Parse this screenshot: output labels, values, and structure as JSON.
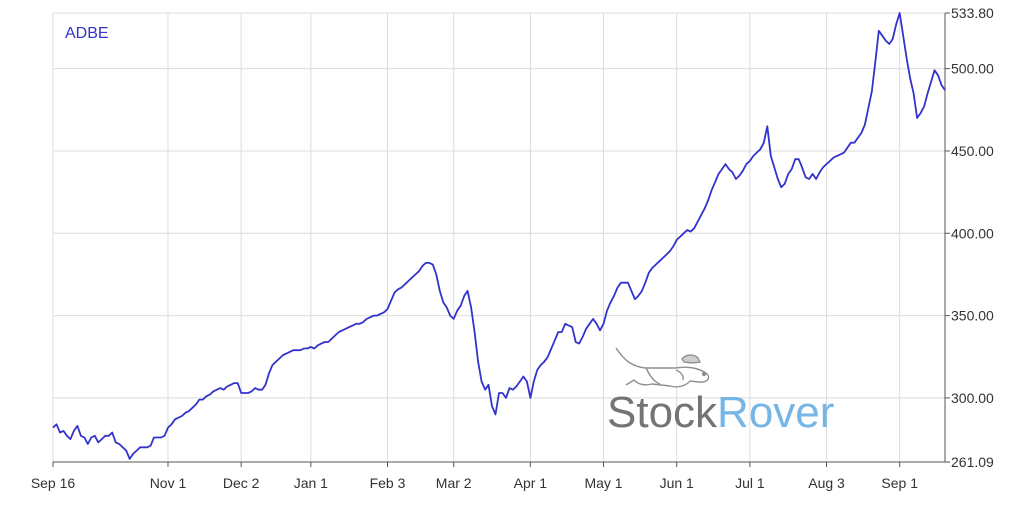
{
  "ticker": "ADBE",
  "watermark": {
    "part1": "Stock",
    "part2": "Rover",
    "color1": "#6d6d6d",
    "color2": "#6fb3e6"
  },
  "colors": {
    "line": "#3333cc",
    "grid": "#dcdcdc",
    "axis": "#555555"
  },
  "chart_data": {
    "type": "line",
    "title": "",
    "xlabel": "",
    "ylabel": "",
    "grid": true,
    "y_axis_side": "right",
    "ylim": [
      261.09,
      533.8
    ],
    "y_ticks": [
      {
        "value": 261.09,
        "label": "261.09"
      },
      {
        "value": 300,
        "label": "300.00"
      },
      {
        "value": 350,
        "label": "350.00"
      },
      {
        "value": 400,
        "label": "400.00"
      },
      {
        "value": 450,
        "label": "450.00"
      },
      {
        "value": 500,
        "label": "500.00"
      },
      {
        "value": 533.8,
        "label": "533.80"
      }
    ],
    "x_ticks": [
      {
        "index": 0,
        "label": "Sep 16"
      },
      {
        "index": 33,
        "label": "Nov 1"
      },
      {
        "index": 54,
        "label": "Dec 2"
      },
      {
        "index": 74,
        "label": "Jan 1"
      },
      {
        "index": 96,
        "label": "Feb 3"
      },
      {
        "index": 115,
        "label": "Mar 2"
      },
      {
        "index": 137,
        "label": "Apr 1"
      },
      {
        "index": 158,
        "label": "May 1"
      },
      {
        "index": 179,
        "label": "Jun 1"
      },
      {
        "index": 200,
        "label": "Jul 1"
      },
      {
        "index": 222,
        "label": "Aug 3"
      },
      {
        "index": 243,
        "label": "Sep 1"
      }
    ],
    "series": [
      {
        "values": [
          282,
          284,
          279,
          280,
          277,
          275,
          280,
          283,
          277,
          276,
          272,
          276,
          277,
          273,
          275,
          277,
          277,
          279,
          273,
          272,
          270,
          268,
          263,
          266,
          268,
          270,
          270,
          270,
          271,
          276,
          276,
          276,
          277,
          282,
          284,
          287,
          288,
          289,
          291,
          292,
          294,
          296,
          299,
          299,
          301,
          302,
          304,
          305,
          306,
          305,
          307,
          308,
          309,
          309,
          303,
          303,
          303,
          304,
          306,
          305,
          305,
          308,
          315,
          320,
          322,
          324,
          326,
          327,
          328,
          329,
          329,
          329,
          330,
          330,
          331,
          330,
          332,
          333,
          334,
          334,
          336,
          338,
          340,
          341,
          342,
          343,
          344,
          345,
          345,
          346,
          348,
          349,
          350,
          350,
          351,
          352,
          354,
          359,
          364,
          366,
          367,
          369,
          371,
          373,
          375,
          377,
          380,
          382,
          382,
          381,
          375,
          365,
          358,
          355,
          350,
          348,
          353,
          356,
          362,
          365,
          355,
          340,
          322,
          310,
          305,
          308,
          295,
          290,
          303,
          303,
          300,
          306,
          305,
          307,
          310,
          313,
          310,
          300,
          310,
          317,
          320,
          322,
          325,
          330,
          335,
          340,
          340,
          345,
          344,
          343,
          334,
          333,
          337,
          342,
          345,
          348,
          345,
          341,
          345,
          353,
          358,
          362,
          367,
          370,
          370,
          370,
          365,
          360,
          362,
          365,
          370,
          376,
          379,
          381,
          383,
          385,
          387,
          389,
          392,
          396,
          398,
          400,
          402,
          401,
          403,
          407,
          411,
          415,
          420,
          426,
          431,
          436,
          439,
          442,
          439,
          437,
          433,
          435,
          438,
          442,
          444,
          447,
          449,
          451,
          455,
          465,
          447,
          440,
          433,
          428,
          430,
          436,
          439,
          445,
          445,
          440,
          434,
          433,
          436,
          433,
          437,
          440,
          442,
          444,
          446,
          447,
          448,
          449,
          452,
          455,
          455,
          458,
          461,
          466,
          476,
          486,
          504,
          523,
          520,
          517,
          515,
          518,
          527,
          533.8,
          520,
          506,
          494,
          485,
          470,
          473,
          477,
          485,
          492,
          499,
          496,
          490,
          487
        ]
      }
    ]
  }
}
